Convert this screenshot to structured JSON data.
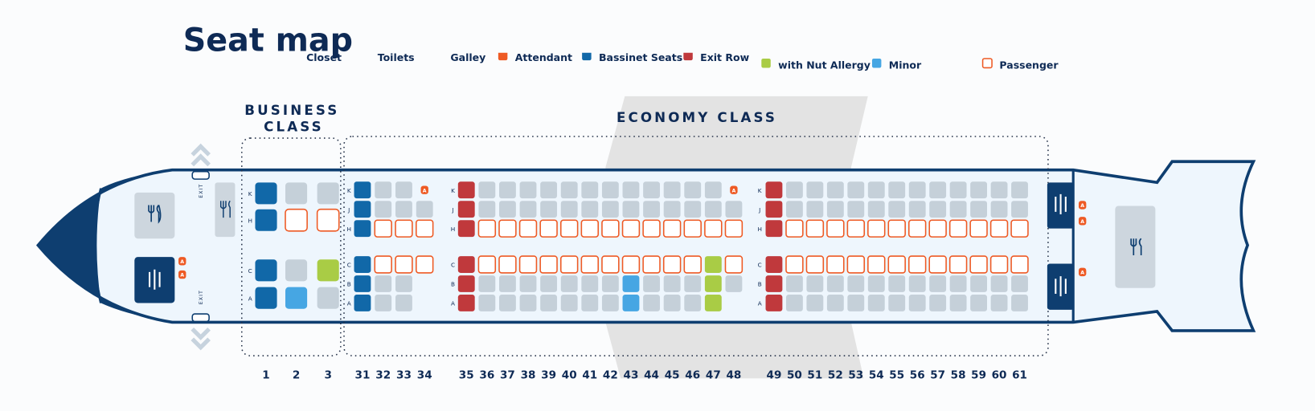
{
  "title": "Seat map",
  "legend": [
    "Closet",
    "Toilets",
    "Galley",
    "Attendant",
    "Bassinet Seats",
    "Exit Row",
    "with Nut Allergy",
    "Minor",
    "Passenger"
  ],
  "business_class": [
    "BUSINESS",
    "CLASS"
  ],
  "economy_class": "ECONOMY CLASS",
  "exit_label": "EXIT",
  "attendant_label": "A",
  "seat_colors": {
    "available": "#c5d0d9",
    "bassinet": "#1168a8",
    "exit": "#c0393c",
    "nut": "#a9cc45",
    "minor": "#46a6e3",
    "passenger": "#ffffff",
    "attendant": "#ee5a24"
  },
  "business": {
    "letters": [
      "K",
      "H",
      "C",
      "A"
    ],
    "rows": [
      {
        "number": "1",
        "seats": [
          "bassinet",
          "bassinet",
          "bassinet",
          "bassinet"
        ]
      },
      {
        "number": "2",
        "seats": [
          "available",
          "passenger",
          "available",
          "minor"
        ]
      },
      {
        "number": "3",
        "seats": [
          "available",
          "passenger",
          "nut",
          "available"
        ]
      }
    ]
  },
  "economy": {
    "letters": [
      "K",
      "J",
      "H",
      "C",
      "B",
      "A"
    ],
    "rows": [
      {
        "number": "31",
        "seats": [
          "bassinet",
          "bassinet",
          "bassinet",
          "bassinet",
          "bassinet",
          "bassinet"
        ]
      },
      {
        "number": "32",
        "seats": [
          "available",
          "available",
          "passenger",
          "passenger",
          "available",
          "available"
        ]
      },
      {
        "number": "33",
        "seats": [
          "available",
          "available",
          "passenger",
          "passenger",
          "available",
          "available"
        ]
      },
      {
        "number": "34",
        "seats": [
          "attendant",
          "available",
          "passenger",
          "passenger",
          null,
          null
        ]
      },
      {
        "number": "35",
        "seats": [
          "exit",
          "exit",
          "exit",
          "exit",
          "exit",
          "exit"
        ]
      },
      {
        "number": "36",
        "seats": [
          "available",
          "available",
          "passenger",
          "passenger",
          "available",
          "available"
        ]
      },
      {
        "number": "37",
        "seats": [
          "available",
          "available",
          "passenger",
          "passenger",
          "available",
          "available"
        ]
      },
      {
        "number": "38",
        "seats": [
          "available",
          "available",
          "passenger",
          "passenger",
          "available",
          "available"
        ]
      },
      {
        "number": "39",
        "seats": [
          "available",
          "available",
          "passenger",
          "passenger",
          "available",
          "available"
        ]
      },
      {
        "number": "40",
        "seats": [
          "available",
          "available",
          "passenger",
          "passenger",
          "available",
          "available"
        ]
      },
      {
        "number": "41",
        "seats": [
          "available",
          "available",
          "passenger",
          "passenger",
          "available",
          "available"
        ]
      },
      {
        "number": "42",
        "seats": [
          "available",
          "available",
          "passenger",
          "passenger",
          "available",
          "available"
        ]
      },
      {
        "number": "43",
        "seats": [
          "available",
          "available",
          "passenger",
          "passenger",
          "minor",
          "minor"
        ]
      },
      {
        "number": "44",
        "seats": [
          "available",
          "available",
          "passenger",
          "passenger",
          "available",
          "available"
        ]
      },
      {
        "number": "45",
        "seats": [
          "available",
          "available",
          "passenger",
          "passenger",
          "available",
          "available"
        ]
      },
      {
        "number": "46",
        "seats": [
          "available",
          "available",
          "passenger",
          "passenger",
          "available",
          "available"
        ]
      },
      {
        "number": "47",
        "seats": [
          "available",
          "available",
          "passenger",
          "nut",
          "nut",
          "nut"
        ]
      },
      {
        "number": "48",
        "seats": [
          "attendant",
          "available",
          "passenger",
          "passenger",
          "available",
          null
        ]
      },
      {
        "number": "49",
        "seats": [
          "exit",
          "exit",
          "exit",
          "exit",
          "exit",
          "exit"
        ]
      },
      {
        "number": "50",
        "seats": [
          "available",
          "available",
          "passenger",
          "passenger",
          "available",
          "available"
        ]
      },
      {
        "number": "51",
        "seats": [
          "available",
          "available",
          "passenger",
          "passenger",
          "available",
          "available"
        ]
      },
      {
        "number": "52",
        "seats": [
          "available",
          "available",
          "passenger",
          "passenger",
          "available",
          "available"
        ]
      },
      {
        "number": "53",
        "seats": [
          "available",
          "available",
          "passenger",
          "passenger",
          "available",
          "available"
        ]
      },
      {
        "number": "54",
        "seats": [
          "available",
          "available",
          "passenger",
          "passenger",
          "available",
          "available"
        ]
      },
      {
        "number": "55",
        "seats": [
          "available",
          "available",
          "passenger",
          "passenger",
          "available",
          "available"
        ]
      },
      {
        "number": "56",
        "seats": [
          "available",
          "available",
          "passenger",
          "passenger",
          "available",
          "available"
        ]
      },
      {
        "number": "57",
        "seats": [
          "available",
          "available",
          "passenger",
          "passenger",
          "available",
          "available"
        ]
      },
      {
        "number": "58",
        "seats": [
          "available",
          "available",
          "passenger",
          "passenger",
          "available",
          "available"
        ]
      },
      {
        "number": "59",
        "seats": [
          "available",
          "available",
          "passenger",
          "passenger",
          "available",
          "available"
        ]
      },
      {
        "number": "60",
        "seats": [
          "available",
          "available",
          "passenger",
          "passenger",
          "available",
          "available"
        ]
      },
      {
        "number": "61",
        "seats": [
          "available",
          "available",
          "passenger",
          "passenger",
          "available",
          "available"
        ]
      }
    ]
  }
}
